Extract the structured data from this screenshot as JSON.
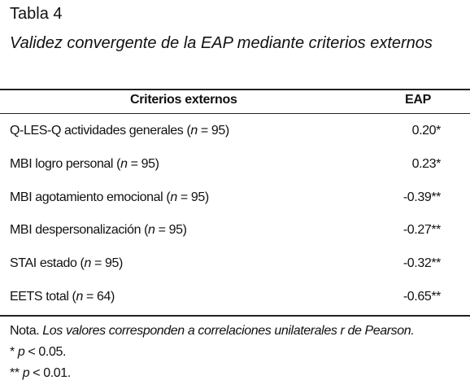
{
  "header": {
    "title": "Tabla 4",
    "subtitle": "Validez convergente de la EAP mediante criterios externos"
  },
  "table": {
    "columns": [
      "Criterios externos",
      "EAP"
    ],
    "rows": [
      {
        "criterion": [
          "Q-LES-Q actividades generales (",
          "n",
          " = 95)"
        ],
        "eap": "0.20*"
      },
      {
        "criterion": [
          "MBI logro personal (",
          "n",
          " = 95)"
        ],
        "eap": "0.23*"
      },
      {
        "criterion": [
          "MBI agotamiento emocional (",
          "n",
          " = 95)"
        ],
        "eap": "-0.39**"
      },
      {
        "criterion": [
          "MBI despersonalización (",
          "n",
          " = 95)"
        ],
        "eap": "-0.27**"
      },
      {
        "criterion": [
          "STAI estado (",
          "n",
          " = 95)"
        ],
        "eap": "-0.32**"
      },
      {
        "criterion": [
          "EETS total (",
          "n",
          " = 64)"
        ],
        "eap": "-0.65**"
      }
    ]
  },
  "notes": [
    [
      "Nota.",
      " Los valores corresponden a correlaciones unilaterales r de Pearson."
    ],
    [
      "* ",
      "p",
      " < 0.05."
    ],
    [
      "** ",
      "p",
      " < 0.01."
    ]
  ]
}
